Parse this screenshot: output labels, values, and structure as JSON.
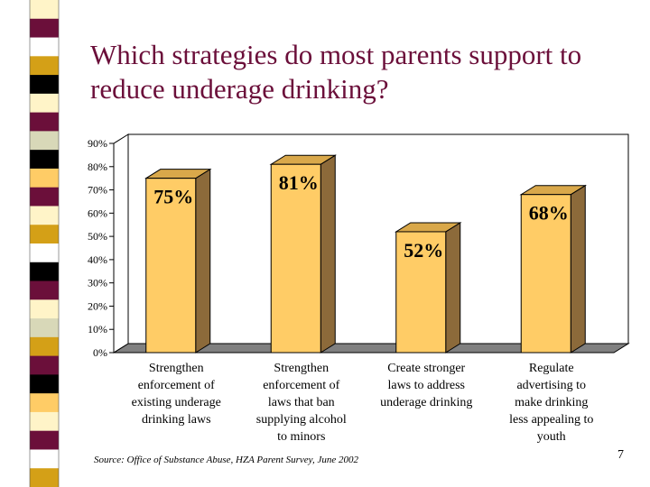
{
  "slide": {
    "title": "Which strategies do most parents support to reduce underage drinking?",
    "source": "Source: Office of Substance Abuse, HZA Parent Survey, June 2002",
    "page_number": "7"
  },
  "colors": {
    "title": "#6b0f3a",
    "bar_front": "#ffcc66",
    "bar_top": "#d9a84a",
    "bar_side": "#8c6a3a",
    "floor": "#808080"
  },
  "stripe_colors": [
    "#fff4c8",
    "#6b0f3a",
    "#ffffff",
    "#d4a017",
    "#000000",
    "#fff4c8",
    "#6b0f3a",
    "#d8d8b8",
    "#000000",
    "#ffcc66",
    "#6b0f3a",
    "#fff4c8",
    "#d4a017",
    "#ffffff",
    "#000000",
    "#6b0f3a",
    "#fff4c8",
    "#d8d8b8",
    "#d4a017",
    "#6b0f3a",
    "#000000",
    "#ffcc66",
    "#fff4c8",
    "#6b0f3a",
    "#ffffff",
    "#d4a017"
  ],
  "chart_data": {
    "type": "bar",
    "title": "",
    "xlabel": "",
    "ylabel": "",
    "categories": [
      [
        "Strengthen",
        "enforcement of",
        "existing underage",
        "drinking laws"
      ],
      [
        "Strengthen",
        "enforcement of",
        "laws that ban",
        "supplying alcohol",
        "to minors"
      ],
      [
        "Create stronger",
        "laws to address",
        "underage drinking"
      ],
      [
        "Regulate",
        "advertising to",
        "make drinking",
        "less appealing to",
        "youth"
      ]
    ],
    "values": [
      75,
      81,
      52,
      68
    ],
    "data_labels": [
      "75%",
      "81%",
      "52%",
      "68%"
    ],
    "ylim": [
      0,
      90
    ],
    "yticks": [
      "0%",
      "10%",
      "20%",
      "30%",
      "40%",
      "50%",
      "60%",
      "70%",
      "80%",
      "90%"
    ],
    "ytick_values": [
      0,
      10,
      20,
      30,
      40,
      50,
      60,
      70,
      80,
      90
    ],
    "grid": false,
    "legend": false
  }
}
